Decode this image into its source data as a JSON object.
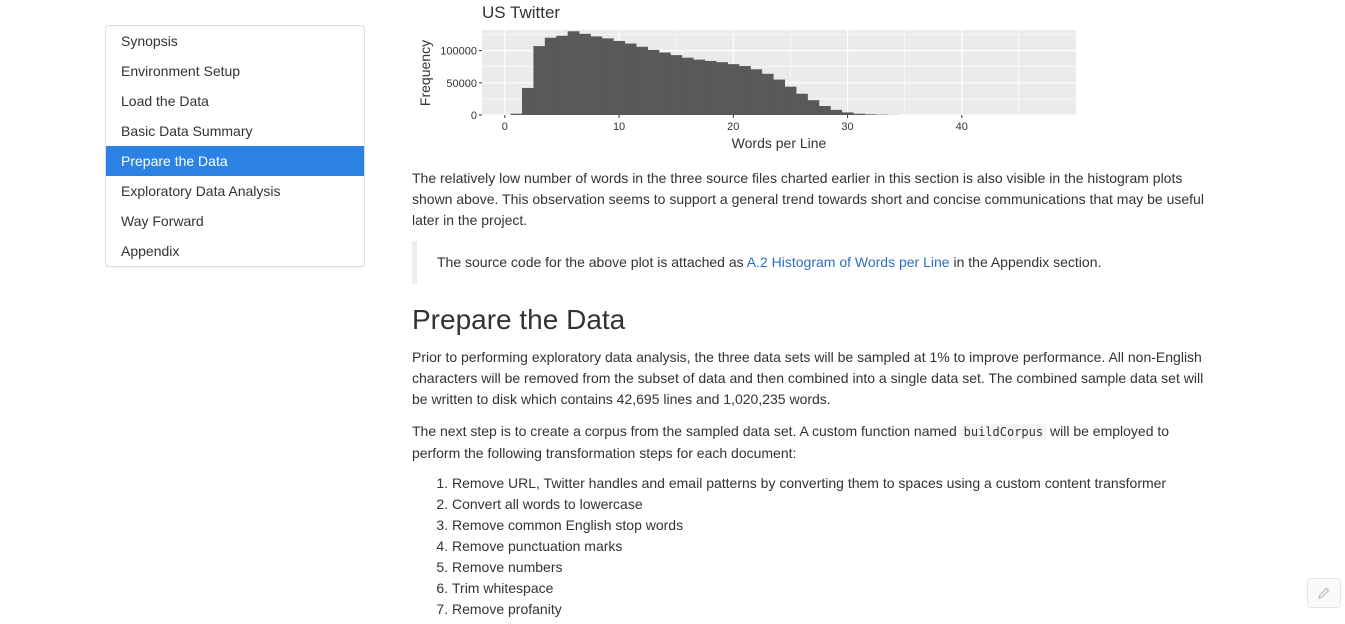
{
  "toc": {
    "items": [
      {
        "label": "Synopsis",
        "active": false
      },
      {
        "label": "Environment Setup",
        "active": false
      },
      {
        "label": "Load the Data",
        "active": false
      },
      {
        "label": "Basic Data Summary",
        "active": false
      },
      {
        "label": "Prepare the Data",
        "active": true
      },
      {
        "label": "Exploratory Data Analysis",
        "active": false
      },
      {
        "label": "Way Forward",
        "active": false
      },
      {
        "label": "Appendix",
        "active": false
      }
    ]
  },
  "chart_data": {
    "type": "bar",
    "title": "US Twitter",
    "xlabel": "Words per Line",
    "ylabel": "Frequency",
    "xlim": [
      -2,
      50
    ],
    "ylim": [
      0,
      132000
    ],
    "x_ticks": [
      0,
      10,
      20,
      30,
      40
    ],
    "y_ticks": [
      0,
      50000,
      100000
    ],
    "y_tick_labels": [
      "0",
      "50000",
      "100000"
    ],
    "grid": true,
    "bin_width": 1,
    "bins": [
      {
        "x": 1,
        "value": 2000
      },
      {
        "x": 2,
        "value": 42000
      },
      {
        "x": 3,
        "value": 107000
      },
      {
        "x": 4,
        "value": 120000
      },
      {
        "x": 5,
        "value": 123000
      },
      {
        "x": 6,
        "value": 130000
      },
      {
        "x": 7,
        "value": 126000
      },
      {
        "x": 8,
        "value": 122000
      },
      {
        "x": 9,
        "value": 119000
      },
      {
        "x": 10,
        "value": 115000
      },
      {
        "x": 11,
        "value": 111000
      },
      {
        "x": 12,
        "value": 106000
      },
      {
        "x": 13,
        "value": 101000
      },
      {
        "x": 14,
        "value": 97000
      },
      {
        "x": 15,
        "value": 93000
      },
      {
        "x": 16,
        "value": 89000
      },
      {
        "x": 17,
        "value": 86000
      },
      {
        "x": 18,
        "value": 84000
      },
      {
        "x": 19,
        "value": 82000
      },
      {
        "x": 20,
        "value": 79000
      },
      {
        "x": 21,
        "value": 76000
      },
      {
        "x": 22,
        "value": 71000
      },
      {
        "x": 23,
        "value": 64000
      },
      {
        "x": 24,
        "value": 55000
      },
      {
        "x": 25,
        "value": 44000
      },
      {
        "x": 26,
        "value": 33000
      },
      {
        "x": 27,
        "value": 23000
      },
      {
        "x": 28,
        "value": 14000
      },
      {
        "x": 29,
        "value": 8000
      },
      {
        "x": 30,
        "value": 4000
      },
      {
        "x": 31,
        "value": 2000
      },
      {
        "x": 32,
        "value": 1000
      },
      {
        "x": 33,
        "value": 500
      },
      {
        "x": 34,
        "value": 200
      }
    ],
    "bar_color": "#595959",
    "panel_color": "#ebebeb",
    "grid_color": "#ffffff"
  },
  "content": {
    "paragraph1": "The relatively low number of words in the three source files charted earlier in this section is also visible in the histogram plots shown above. This observation seems to support a general trend towards short and concise communications that may be useful later in the project.",
    "blockquote": {
      "before": "The source code for the above plot is attached as ",
      "link": "A.2 Histogram of Words per Line",
      "after": " in the Appendix section."
    },
    "section_title": "Prepare the Data",
    "paragraph2": "Prior to performing exploratory data analysis, the three data sets will be sampled at 1% to improve performance. All non-English characters will be removed from the subset of data and then combined into a single data set. The combined sample data set will be written to disk which contains 42,695 lines and 1,020,235 words.",
    "paragraph3": {
      "before": "The next step is to create a corpus from the sampled data set. A custom function named ",
      "code": "buildCorpus",
      "after": " will be employed to perform the following transformation steps for each document:"
    },
    "steps": [
      "Remove URL, Twitter handles and email patterns by converting them to spaces using a custom content transformer",
      "Convert all words to lowercase",
      "Remove common English stop words",
      "Remove punctuation marks",
      "Remove numbers",
      "Trim whitespace",
      "Remove profanity"
    ]
  },
  "edit_button": {
    "icon": "pencil-icon"
  }
}
